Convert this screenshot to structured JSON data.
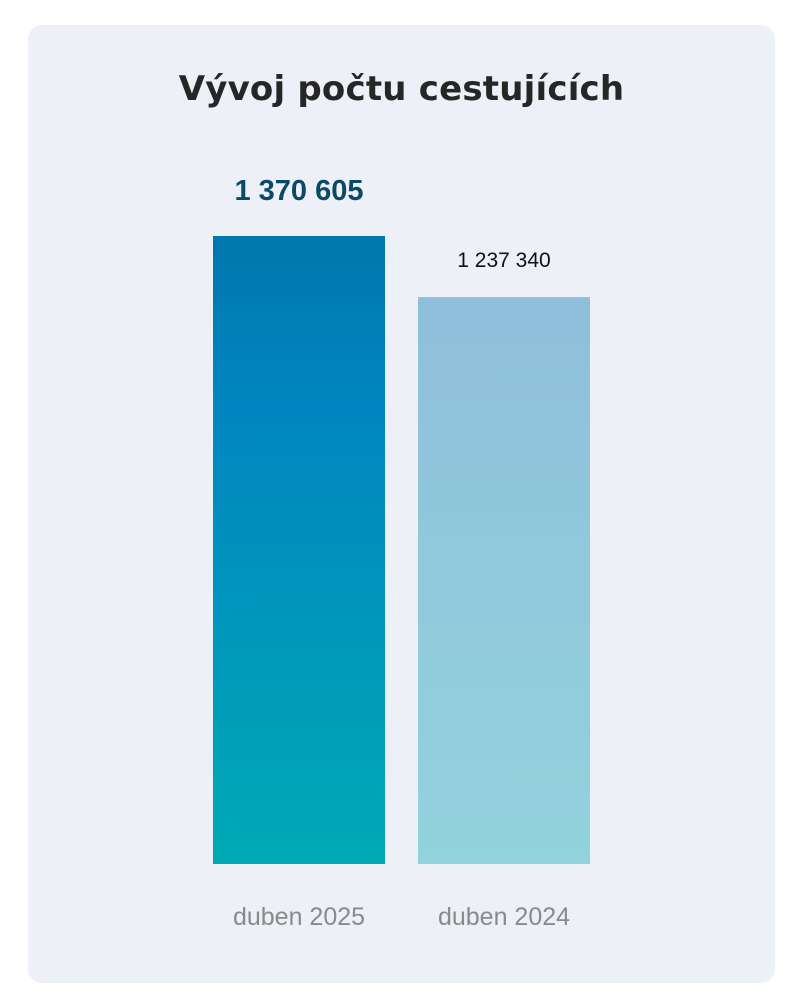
{
  "chart_data": {
    "type": "bar",
    "title": "Vývoj počtu cestujících",
    "categories": [
      "duben 2025",
      "duben 2024"
    ],
    "values": [
      1370605,
      1237340
    ],
    "value_labels": [
      "1 370 605",
      "1 237 340"
    ],
    "ylim": [
      0,
      1370605
    ],
    "grid": false,
    "legend": "none",
    "colors": {
      "bar_2025_top": "#0077ad",
      "bar_2025_mid": "#0086c0",
      "bar_2025_bottom": "#00aab5",
      "bar_2024_top": "#8fbfdb",
      "bar_2024_bottom": "#92d3dd",
      "card_background": "#edf0f7"
    }
  }
}
